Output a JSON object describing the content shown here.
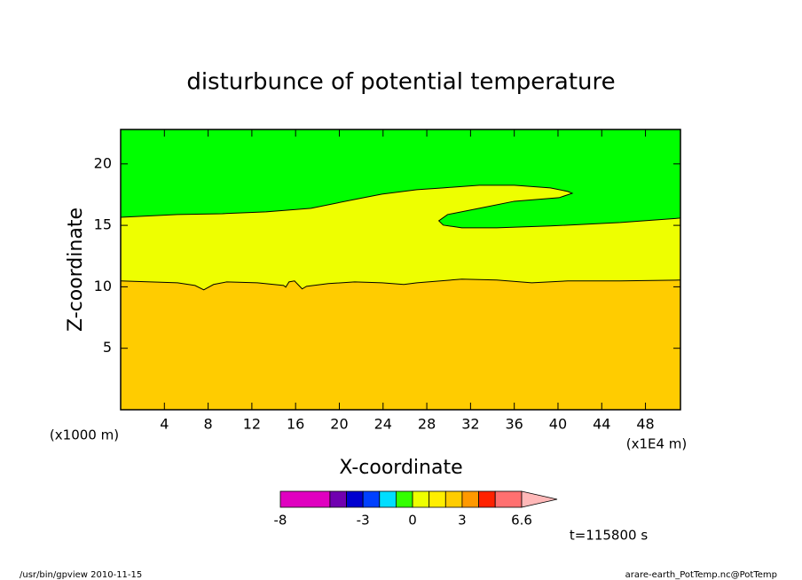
{
  "chart_data": {
    "type": "contour",
    "title": "disturbunce of potential temperature",
    "x_label": "X-coordinate",
    "y_label": "Z-coordinate",
    "x_unit_left": "(x1000 m)",
    "x_unit_right": "(x1E4 m)",
    "time_label": "t=115800 s",
    "footer_left": "/usr/bin/gpview   2010-11-15",
    "footer_right": "arare-earth_PotTemp.nc@PotTemp",
    "xlim": [
      0,
      51.2
    ],
    "ylim": [
      0,
      22.8
    ],
    "xticks": [
      4,
      8,
      12,
      16,
      20,
      24,
      28,
      32,
      36,
      40,
      44,
      48
    ],
    "yticks": [
      5,
      10,
      15,
      20
    ],
    "fill_colors": [
      "#ffcc00",
      "#eeff00",
      "#00ff00"
    ],
    "contours": [
      {
        "x": [
          0,
          5.2,
          6.8,
          7.6,
          8.5,
          9.7,
          12.5,
          14.9,
          15.1,
          15.4,
          15.9,
          16.3,
          16.6,
          17.0,
          19.0,
          21.4,
          23.9,
          25.9,
          27.1,
          31.2,
          34.4,
          37.6,
          40.9,
          45.7,
          51.2
        ],
        "y": [
          10.48,
          10.33,
          10.11,
          9.75,
          10.19,
          10.4,
          10.33,
          10.11,
          9.97,
          10.4,
          10.48,
          10.11,
          9.83,
          10.04,
          10.26,
          10.4,
          10.33,
          10.19,
          10.33,
          10.62,
          10.55,
          10.33,
          10.48,
          10.48,
          10.55
        ]
      },
      {
        "x": [
          0,
          5.2,
          9.3,
          13.3,
          17.4,
          21.4,
          23.9,
          27.1,
          29.5,
          32.8,
          36.0,
          39.3,
          40.9,
          41.3,
          40.1,
          36.0,
          32.8,
          29.9,
          29.1,
          29.5,
          31.2,
          34.4,
          39.3,
          45.7,
          51.2
        ],
        "y": [
          15.66,
          15.88,
          15.95,
          16.1,
          16.39,
          17.11,
          17.54,
          17.9,
          18.05,
          18.26,
          18.26,
          18.05,
          17.76,
          17.61,
          17.25,
          16.96,
          16.39,
          15.88,
          15.37,
          15.02,
          14.8,
          14.8,
          14.95,
          15.23,
          15.59
        ]
      }
    ],
    "colorbar": {
      "levels": [
        -8,
        -5,
        -4,
        -3,
        -2,
        -1,
        0,
        1,
        2,
        3,
        4,
        5,
        6.6
      ],
      "colors": [
        "#e000c0",
        "#7000b0",
        "#0000d0",
        "#0040ff",
        "#00ddff",
        "#33ff00",
        "#eeff00",
        "#ffee00",
        "#ffcc00",
        "#ff9900",
        "#ff2200",
        "#ff7070"
      ],
      "extend_color": "#ffb8b8",
      "ticks": [
        -8,
        -3,
        0,
        3,
        6.6
      ]
    }
  }
}
